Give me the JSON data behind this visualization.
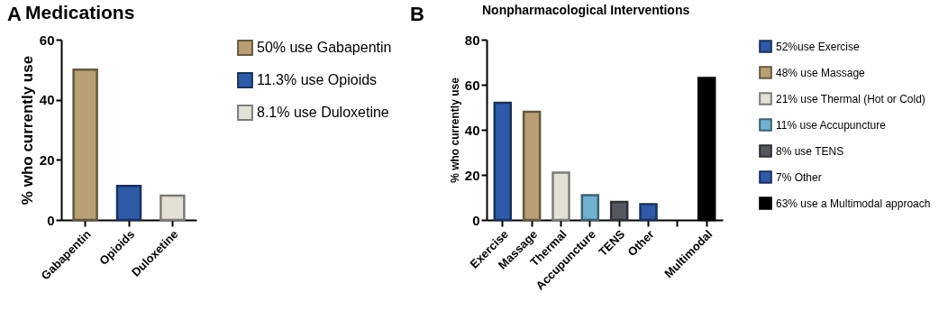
{
  "chart_data": [
    {
      "type": "bar",
      "title": "Medications",
      "ylabel": "% who currently use",
      "annotations": [
        "A"
      ],
      "categories": [
        "Gabapentin",
        "Opioids",
        "Duloxetine"
      ],
      "series": [
        {
          "name": "50% use Gabapentin",
          "color": "#b9a074",
          "values": [
            50,
            null,
            null
          ]
        },
        {
          "name": "11.3% use Opioids",
          "color": "#2f5aa8",
          "values": [
            null,
            11.3,
            null
          ]
        },
        {
          "name": "8.1% use Duloxetine",
          "color": "#e3e0d6",
          "values": [
            null,
            null,
            8.1
          ]
        }
      ],
      "ylim": [
        0,
        60
      ],
      "yticks": [
        0,
        20,
        40,
        60
      ],
      "grid": false,
      "legend": "right"
    },
    {
      "type": "bar",
      "title": "Nonpharmacological  Interventions",
      "ylabel": "% who currently use",
      "annotations": [
        "B"
      ],
      "categories": [
        "Exercise",
        "Massage",
        "Thermal",
        "Accupuncture",
        "TENS",
        "Other",
        null,
        "Multimodal"
      ],
      "series": [
        {
          "name": "52%use Exercise",
          "color": "#2f5aa8",
          "values": [
            52,
            null,
            null,
            null,
            null,
            null,
            null,
            null
          ]
        },
        {
          "name": "48% use Massage",
          "color": "#b9a074",
          "values": [
            null,
            48,
            null,
            null,
            null,
            null,
            null,
            null
          ]
        },
        {
          "name": "21% use Thermal (Hot or Cold)",
          "color": "#e3e0d6",
          "values": [
            null,
            null,
            21,
            null,
            null,
            null,
            null,
            null
          ]
        },
        {
          "name": "11% use Accupuncture",
          "color": "#6fb1cf",
          "values": [
            null,
            null,
            null,
            11,
            null,
            null,
            null,
            null
          ]
        },
        {
          "name": "8% use TENS",
          "color": "#55585e",
          "values": [
            null,
            null,
            null,
            null,
            8,
            null,
            null,
            null
          ]
        },
        {
          "name": "7% Other",
          "color": "#2f5aa8",
          "values": [
            null,
            null,
            null,
            null,
            null,
            7,
            null,
            null
          ]
        },
        {
          "name": "63% use a Multimodal approach",
          "color": "#000000",
          "values": [
            null,
            null,
            null,
            null,
            null,
            null,
            null,
            63
          ]
        }
      ],
      "ylim": [
        0,
        80
      ],
      "yticks": [
        0,
        20,
        40,
        60,
        80
      ],
      "grid": false,
      "legend": "right"
    }
  ]
}
